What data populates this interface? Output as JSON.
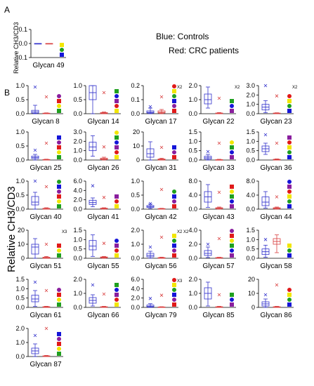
{
  "panel_a_label": "A",
  "panel_b_label": "B",
  "panel_a_ylabel": "Relative CH3/CD3",
  "panel_b_ylabel": "Relative CH3/CD3",
  "legend": {
    "controls": "Blue: Controls",
    "crc": "Red: CRC patients"
  },
  "colors": {
    "controls": "#3333cc",
    "crc": "#d94040",
    "legend_blue": "#1a1acc",
    "legend_red": "#cc2020",
    "glc_blue": "#1515d8",
    "gal_yellow": "#f2e600",
    "man_green": "#1fa01f",
    "fuc_red": "#e01a1a",
    "sia_purple": "#8a1e9e"
  },
  "chart_data": [
    {
      "type": "box",
      "panel": "A",
      "name": "Glycan 49",
      "yticks": [
        "0.1",
        "0.0",
        "-0.1"
      ],
      "ylim": [
        -0.1,
        0.1
      ],
      "controls": {
        "min": 0.0,
        "q1": 0.0,
        "median": 0.0,
        "q3": 0.0,
        "max": 0.0
      },
      "crc": {
        "min": 0.0,
        "q1": 0.0,
        "median": 0.0,
        "q3": 0.0,
        "max": 0.0
      },
      "annotation": ""
    },
    {
      "type": "box",
      "name": "Glycan 8",
      "yticks": [
        "1.0",
        "0.5",
        "0.0"
      ],
      "ylim": [
        0,
        1.0
      ],
      "controls": {
        "min": 0.0,
        "q1": 0.02,
        "median": 0.06,
        "q3": 0.12,
        "max": 0.3,
        "outlier": 0.95
      },
      "crc": {
        "min": 0.0,
        "q1": 0.0,
        "median": 0.01,
        "q3": 0.02,
        "max": 0.03,
        "outlier": 0.6
      },
      "annotation": ""
    },
    {
      "type": "box",
      "name": "Glycan 14",
      "yticks": [
        "1.0",
        "0.5",
        "0.0"
      ],
      "ylim": [
        0,
        1.0
      ],
      "controls": {
        "min": 0.0,
        "q1": 0.5,
        "median": 0.75,
        "q3": 1.0,
        "max": 1.0
      },
      "crc": {
        "min": 0.0,
        "q1": 0.0,
        "median": 0.02,
        "q3": 0.04,
        "max": 0.06,
        "outlier": 0.75
      },
      "annotation": ""
    },
    {
      "type": "box",
      "name": "Glycan 17",
      "yticks": [
        "0.2",
        "0.1",
        "0.0"
      ],
      "ylim": [
        0,
        0.2
      ],
      "controls": {
        "min": 0.0,
        "q1": 0.005,
        "median": 0.01,
        "q3": 0.02,
        "max": 0.04,
        "outlier": 0.05
      },
      "crc": {
        "min": 0.0,
        "q1": 0.005,
        "median": 0.01,
        "q3": 0.02,
        "max": 0.03,
        "outlier": 0.12
      },
      "annotation": "X2"
    },
    {
      "type": "box",
      "name": "Glycan 22",
      "yticks": [
        "2.0",
        "1.0",
        "0.0"
      ],
      "ylim": [
        0,
        2.0
      ],
      "controls": {
        "min": 0.4,
        "q1": 0.7,
        "median": 1.0,
        "q3": 1.4,
        "max": 1.9
      },
      "crc": {
        "min": 0.0,
        "q1": 0.0,
        "median": 0.02,
        "q3": 0.05,
        "max": 0.08,
        "outlier": 1.1
      },
      "annotation": "X2"
    },
    {
      "type": "box",
      "name": "Glycan 23",
      "yticks": [
        "3.0",
        "2.0",
        "1.0",
        "0.0"
      ],
      "ylim": [
        0,
        3.0
      ],
      "controls": {
        "min": 0.1,
        "q1": 0.4,
        "median": 0.7,
        "q3": 1.0,
        "max": 1.4,
        "outlier": 3.0
      },
      "crc": {
        "min": 0.0,
        "q1": 0.02,
        "median": 0.04,
        "q3": 0.07,
        "max": 0.1,
        "outlier": 1.9
      },
      "annotation": "X2"
    },
    {
      "type": "box",
      "name": "Glycan 25",
      "yticks": [
        "1.0",
        "0.5",
        "0.0"
      ],
      "ylim": [
        0,
        1.0
      ],
      "controls": {
        "min": 0.0,
        "q1": 0.05,
        "median": 0.09,
        "q3": 0.14,
        "max": 0.2,
        "outlier": 0.35
      },
      "crc": {
        "min": 0.0,
        "q1": 0.0,
        "median": 0.01,
        "q3": 0.02,
        "max": 0.03,
        "outlier": 0.6
      },
      "annotation": ""
    },
    {
      "type": "box",
      "name": "Glycan 26",
      "yticks": [
        "3.0",
        "2.0",
        "1.0",
        "0.0"
      ],
      "ylim": [
        0,
        3.0
      ],
      "controls": {
        "min": 0.4,
        "q1": 1.0,
        "median": 1.4,
        "q3": 1.9,
        "max": 2.6
      },
      "crc": {
        "min": 0.0,
        "q1": 0.05,
        "median": 0.1,
        "q3": 0.2,
        "max": 0.3,
        "outlier": 1.4
      },
      "annotation": ""
    },
    {
      "type": "box",
      "name": "Glycan 31",
      "yticks": [
        "20",
        "10",
        "0"
      ],
      "ylim": [
        0,
        20
      ],
      "controls": {
        "min": 0.0,
        "q1": 2.0,
        "median": 4.5,
        "q3": 8.0,
        "max": 13.0
      },
      "crc": {
        "min": 0.0,
        "q1": 0.0,
        "median": 0.3,
        "q3": 0.8,
        "max": 1.3,
        "outlier": 9.0
      },
      "annotation": ""
    },
    {
      "type": "box",
      "name": "Glycan 33",
      "yticks": [
        "1.5",
        "1.0",
        "0.5",
        "0.0"
      ],
      "ylim": [
        0,
        1.5
      ],
      "controls": {
        "min": 0.0,
        "q1": 0.05,
        "median": 0.12,
        "q3": 0.2,
        "max": 0.3,
        "outlier": 0.45
      },
      "crc": {
        "min": 0.0,
        "q1": 0.0,
        "median": 0.01,
        "q3": 0.02,
        "max": 0.04,
        "outlier": 0.9
      },
      "annotation": ""
    },
    {
      "type": "box",
      "name": "Glycan 36",
      "yticks": [
        "1.5",
        "1.0",
        "0.5",
        "0.0"
      ],
      "ylim": [
        0,
        1.5
      ],
      "controls": {
        "min": 0.3,
        "q1": 0.45,
        "median": 0.6,
        "q3": 0.75,
        "max": 0.9,
        "outlier": 1.35
      },
      "crc": {
        "min": 0.0,
        "q1": 0.0,
        "median": 0.02,
        "q3": 0.04,
        "max": 0.06,
        "outlier": 0.9
      },
      "annotation": ""
    },
    {
      "type": "box",
      "name": "Glycan 40",
      "yticks": [
        "1.0",
        "0.5",
        "0.0"
      ],
      "ylim": [
        0,
        1.0
      ],
      "controls": {
        "min": 0.0,
        "q1": 0.15,
        "median": 0.25,
        "q3": 0.45,
        "max": 0.6,
        "outlier": 1.05
      },
      "crc": {
        "min": 0.0,
        "q1": 0.0,
        "median": 0.01,
        "q3": 0.03,
        "max": 0.05,
        "outlier": 0.8
      },
      "annotation": ""
    },
    {
      "type": "box",
      "name": "Glycan 41",
      "yticks": [
        "6.0",
        "4.0",
        "2.0",
        "0.0"
      ],
      "ylim": [
        0,
        6.0
      ],
      "controls": {
        "min": 0.5,
        "q1": 1.0,
        "median": 1.4,
        "q3": 1.9,
        "max": 2.4,
        "outlier": 5.0
      },
      "crc": {
        "min": 0.0,
        "q1": 0.05,
        "median": 0.1,
        "q3": 0.2,
        "max": 0.3,
        "outlier": 2.5
      },
      "annotation": ""
    },
    {
      "type": "box",
      "name": "Glycan 42",
      "yticks": [
        "1.0",
        "0.5",
        "0.0"
      ],
      "ylim": [
        0,
        1.0
      ],
      "controls": {
        "min": 0.02,
        "q1": 0.06,
        "median": 0.09,
        "q3": 0.13,
        "max": 0.18,
        "outlier": 0.2
      },
      "crc": {
        "min": 0.0,
        "q1": 0.0,
        "median": 0.01,
        "q3": 0.02,
        "max": 0.03,
        "outlier": 0.7
      },
      "annotation": ""
    },
    {
      "type": "box",
      "name": "Glycan 43",
      "yticks": [
        "8.0",
        "4.0",
        "0.0"
      ],
      "ylim": [
        0,
        8.0
      ],
      "controls": {
        "min": 0.5,
        "q1": 2.0,
        "median": 3.5,
        "q3": 5.0,
        "max": 7.0
      },
      "crc": {
        "min": 0.0,
        "q1": 0.1,
        "median": 0.2,
        "q3": 0.4,
        "max": 0.6,
        "outlier": 4.8
      },
      "annotation": ""
    },
    {
      "type": "box",
      "name": "Glycan 44",
      "yticks": [
        "8.0",
        "4.0",
        "0.0"
      ],
      "ylim": [
        0,
        8.0
      ],
      "controls": {
        "min": 0.3,
        "q1": 1.0,
        "median": 2.0,
        "q3": 3.5,
        "max": 5.0
      },
      "crc": {
        "min": 0.0,
        "q1": 0.1,
        "median": 0.2,
        "q3": 0.4,
        "max": 0.6,
        "outlier": 3.5
      },
      "annotation": ""
    },
    {
      "type": "box",
      "name": "Glycan 51",
      "yticks": [
        "20",
        "10",
        "0"
      ],
      "ylim": [
        0,
        20
      ],
      "controls": {
        "min": 0.0,
        "q1": 3.0,
        "median": 8.0,
        "q3": 10.0,
        "max": 14.0
      },
      "crc": {
        "min": 0.0,
        "q1": 0.0,
        "median": 0.3,
        "q3": 0.8,
        "max": 1.3,
        "outlier": 10.0
      },
      "annotation": "X3"
    },
    {
      "type": "box",
      "name": "Glycan 55",
      "yticks": [
        "1.5",
        "1.0",
        "0.5",
        "0.0"
      ],
      "ylim": [
        0,
        1.5
      ],
      "controls": {
        "min": 0.1,
        "q1": 0.45,
        "median": 0.65,
        "q3": 0.95,
        "max": 1.25
      },
      "crc": {
        "min": 0.0,
        "q1": 0.02,
        "median": 0.04,
        "q3": 0.07,
        "max": 0.1,
        "outlier": 0.8
      },
      "annotation": ""
    },
    {
      "type": "box",
      "name": "Glycan 56",
      "yticks": [
        "2.0",
        "1.0",
        "0.0"
      ],
      "ylim": [
        0,
        2.0
      ],
      "controls": {
        "min": 0.0,
        "q1": 0.1,
        "median": 0.2,
        "q3": 0.35,
        "max": 0.5,
        "outlier": 0.8
      },
      "crc": {
        "min": 0.0,
        "q1": 0.0,
        "median": 0.02,
        "q3": 0.05,
        "max": 0.08,
        "outlier": 1.5
      },
      "annotation": "X2 X2"
    },
    {
      "type": "box",
      "name": "Glycan 57",
      "yticks": [
        "4.0",
        "2.0",
        "0.0"
      ],
      "ylim": [
        0,
        4.0
      ],
      "controls": {
        "min": 0.1,
        "q1": 0.4,
        "median": 0.7,
        "q3": 1.1,
        "max": 1.6,
        "outlier": 2.0
      },
      "crc": {
        "min": 0.0,
        "q1": 0.02,
        "median": 0.05,
        "q3": 0.1,
        "max": 0.15,
        "outlier": 2.8
      },
      "annotation": ""
    },
    {
      "type": "box",
      "name": "Glycan 58",
      "yticks": [
        "1.5",
        "1.0",
        "0.5",
        "0.0"
      ],
      "ylim": [
        0,
        1.5
      ],
      "controls": {
        "min": 0.05,
        "q1": 0.2,
        "median": 0.35,
        "q3": 0.5,
        "max": 0.7,
        "outlier": 1.0
      },
      "crc": {
        "min": 0.3,
        "q1": 0.75,
        "median": 0.9,
        "q3": 1.05,
        "max": 1.25
      },
      "annotation": ""
    },
    {
      "type": "box",
      "name": "Glycan 61",
      "yticks": [
        "1.5",
        "1.0",
        "0.5",
        "0.0"
      ],
      "ylim": [
        0,
        1.5
      ],
      "controls": {
        "min": 0.05,
        "q1": 0.3,
        "median": 0.45,
        "q3": 0.65,
        "max": 0.9,
        "outlier": 1.35
      },
      "crc": {
        "min": 0.0,
        "q1": 0.0,
        "median": 0.02,
        "q3": 0.04,
        "max": 0.06,
        "outlier": 0.9
      },
      "annotation": ""
    },
    {
      "type": "box",
      "name": "Glycan 66",
      "yticks": [
        "2.0",
        "1.0",
        "0.0"
      ],
      "ylim": [
        0,
        2.0
      ],
      "controls": {
        "min": 0.1,
        "q1": 0.3,
        "median": 0.5,
        "q3": 0.7,
        "max": 0.9,
        "outlier": 1.6
      },
      "crc": {
        "min": 0.0,
        "q1": 0.0,
        "median": 0.02,
        "q3": 0.05,
        "max": 0.08,
        "outlier": 0.95
      },
      "annotation": ""
    },
    {
      "type": "box",
      "name": "Glycan 79",
      "yticks": [
        "6.0",
        "4.0",
        "2.0",
        "0.0"
      ],
      "ylim": [
        0,
        6.0
      ],
      "controls": {
        "min": 0.0,
        "q1": 0.1,
        "median": 0.25,
        "q3": 0.5,
        "max": 0.8,
        "outlier": 1.9
      },
      "crc": {
        "min": 0.0,
        "q1": 0.0,
        "median": 0.05,
        "q3": 0.1,
        "max": 0.15,
        "outlier": 2.6
      },
      "annotation": "X3"
    },
    {
      "type": "box",
      "name": "Glycan 85",
      "yticks": [
        "2.0",
        "1.0",
        "0.0"
      ],
      "ylim": [
        0,
        2.0
      ],
      "controls": {
        "min": 0.1,
        "q1": 0.6,
        "median": 1.0,
        "q3": 1.4,
        "max": 1.8
      },
      "crc": {
        "min": 0.0,
        "q1": 0.0,
        "median": 0.02,
        "q3": 0.05,
        "max": 0.08,
        "outlier": 0.9
      },
      "annotation": ""
    },
    {
      "type": "box",
      "name": "Glycan 86",
      "yticks": [
        "20",
        "10",
        "0"
      ],
      "ylim": [
        0,
        20
      ],
      "controls": {
        "min": 0.0,
        "q1": 1.0,
        "median": 2.5,
        "q3": 4.0,
        "max": 6.0,
        "outlier": 9.0
      },
      "crc": {
        "min": 0.0,
        "q1": 0.0,
        "median": 0.2,
        "q3": 0.5,
        "max": 0.8,
        "outlier": 16.0
      },
      "annotation": ""
    },
    {
      "type": "box",
      "name": "Glycan 87",
      "yticks": [
        "2.0",
        "1.0",
        "0.0"
      ],
      "ylim": [
        0,
        2.0
      ],
      "controls": {
        "min": 0.0,
        "q1": 0.2,
        "median": 0.4,
        "q3": 0.6,
        "max": 0.9,
        "outlier": 1.5
      },
      "crc": {
        "min": 0.0,
        "q1": 0.0,
        "median": 0.02,
        "q3": 0.05,
        "max": 0.08,
        "outlier": 2.0
      },
      "annotation": ""
    }
  ]
}
